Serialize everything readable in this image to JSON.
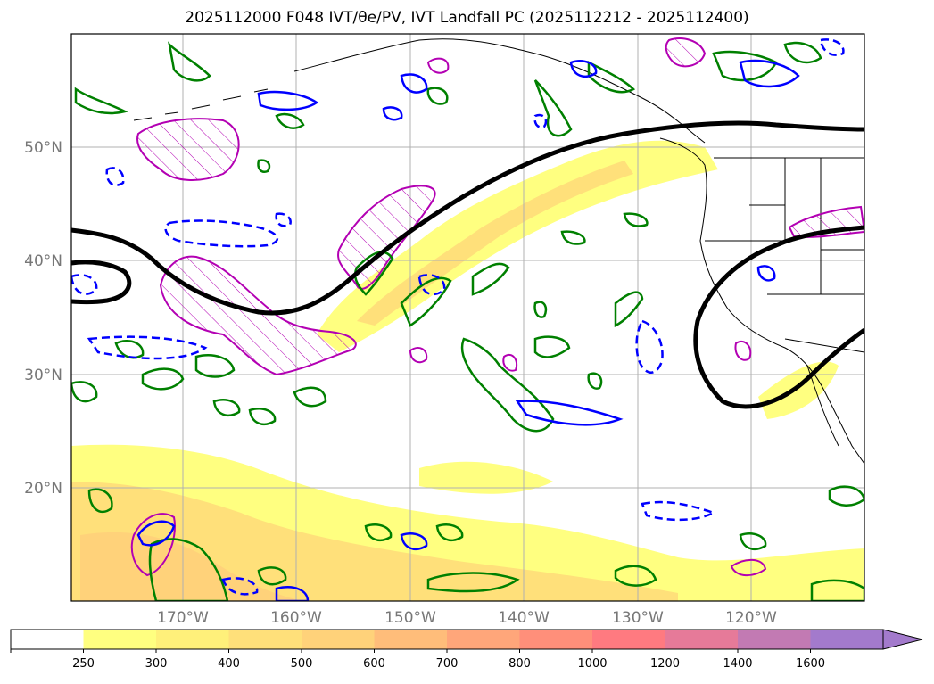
{
  "title": "2025112000 F048 IVT/θe/PV, IVT Landfall PC (2025112212 - 2025112400)",
  "map": {
    "lat_labels": [
      "50°N",
      "40°N",
      "30°N",
      "20°N"
    ],
    "lon_labels": [
      "170°W",
      "160°W",
      "150°W",
      "140°W",
      "130°W",
      "120°W"
    ],
    "ivt_fill_colors": [
      "#ffff80",
      "#fff07a",
      "#ffe07a",
      "#ffd27a",
      "#ffbd7a",
      "#ffa67a"
    ],
    "colors": {
      "coast": "#000000",
      "jet_contour": "#000000",
      "pv_contour": "#b300b3",
      "theta_e_solid": "#008000",
      "theta_e_dashed": "#0000ff",
      "gridline": "#b0b0b0"
    }
  },
  "colorbar": {
    "ticks": [
      "250",
      "300",
      "400",
      "500",
      "600",
      "700",
      "800",
      "1000",
      "1200",
      "1400",
      "1600"
    ],
    "colors": [
      "#ffffff",
      "#ffff80",
      "#fff07a",
      "#ffe07a",
      "#ffd27a",
      "#ffbd7a",
      "#ffa67a",
      "#ff8f7a",
      "#ff7a80",
      "#e67a99",
      "#c27ab3",
      "#a37acc"
    ],
    "extend": "max"
  }
}
